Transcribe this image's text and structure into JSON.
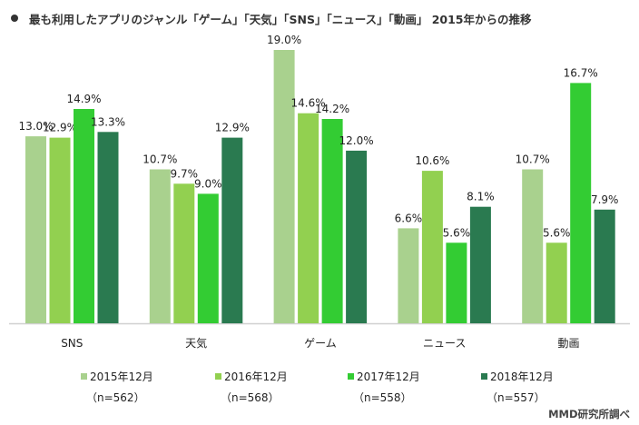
{
  "title": "最も利用したアプリのジャンル「ゲーム」「天気」「SNS」「ニュース」「動画」 2015年からの推移",
  "source": "MMD研究所調べ",
  "chart_data": {
    "type": "bar",
    "title": "最も利用したアプリのジャンル「ゲーム」「天気」「SNS」「ニュース」「動画」 2015年からの推移",
    "xlabel": "",
    "ylabel": "",
    "ylim": [
      0,
      19.0
    ],
    "grid": false,
    "legend_position": "bottom",
    "categories": [
      "SNS",
      "天気",
      "ゲーム",
      "ニュース",
      "動画"
    ],
    "series": [
      {
        "name": "2015年12月",
        "n": "（n=562）",
        "color": "#a9d18e",
        "values": [
          13.0,
          10.7,
          19.0,
          6.6,
          10.7
        ],
        "labels": [
          "13.0%",
          "10.7%",
          "19.0%",
          "6.6%",
          "10.7%"
        ]
      },
      {
        "name": "2016年12月",
        "n": "（n=568）",
        "color": "#92d050",
        "values": [
          12.9,
          9.7,
          14.6,
          10.6,
          5.6
        ],
        "labels": [
          "12.9%",
          "9.7%",
          "14.6%",
          "10.6%",
          "5.6%"
        ]
      },
      {
        "name": "2017年12月",
        "n": "（n=558）",
        "color": "#33cc33",
        "values": [
          14.9,
          9.0,
          14.2,
          5.6,
          16.7
        ],
        "labels": [
          "14.9%",
          "9.0%",
          "14.2%",
          "5.6%",
          "16.7%"
        ]
      },
      {
        "name": "2018年12月",
        "n": "（n=557）",
        "color": "#2a7a50",
        "values": [
          13.3,
          12.9,
          12.0,
          8.1,
          7.9
        ],
        "labels": [
          "13.3%",
          "12.9%",
          "12.0%",
          "8.1%",
          "7.9%"
        ]
      }
    ]
  }
}
